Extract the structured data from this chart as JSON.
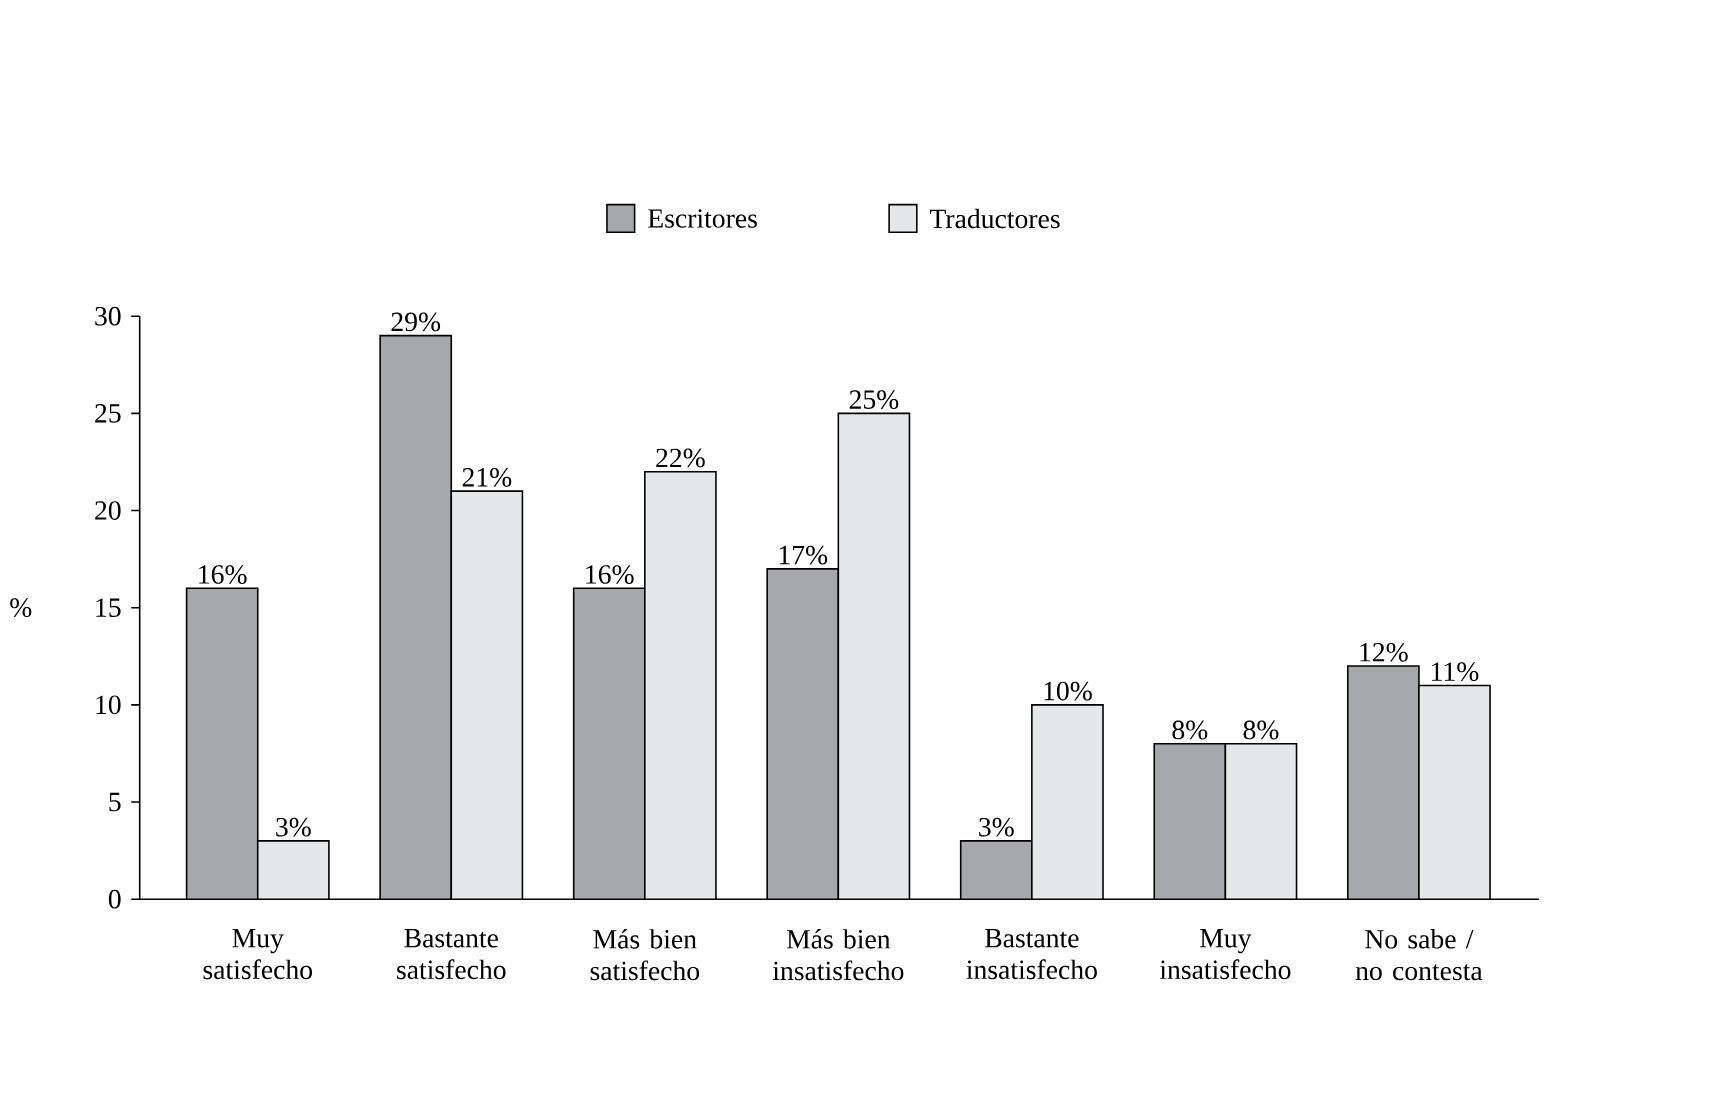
{
  "chart_data": {
    "type": "bar",
    "ylabel": "%",
    "categories": [
      "Muy satisfecho",
      "Bastante satisfecho",
      "Más bien satisfecho",
      "Más bien insatisfecho",
      "Bastante insatisfecho",
      "Muy insatisfecho",
      "No sabe / no contesta"
    ],
    "series": [
      {
        "name": "Escritores",
        "color": "#a7a8ab",
        "values": [
          16,
          29,
          16,
          17,
          3,
          8,
          12
        ],
        "value_labels": [
          "16%",
          "29%",
          "16%",
          "17%",
          "3%",
          "8%",
          "12%"
        ]
      },
      {
        "name": "Traductores",
        "color": "#e6e7e8",
        "values": [
          3,
          21,
          22,
          25,
          10,
          8,
          11
        ],
        "value_labels": [
          "3%",
          "21%",
          "22%",
          "25%",
          "10%",
          "8%",
          "11%"
        ]
      }
    ],
    "ylim": [
      0,
      30
    ],
    "yticks": [
      0,
      5,
      10,
      15,
      20,
      25,
      30
    ],
    "grid": false,
    "legend": "top"
  }
}
